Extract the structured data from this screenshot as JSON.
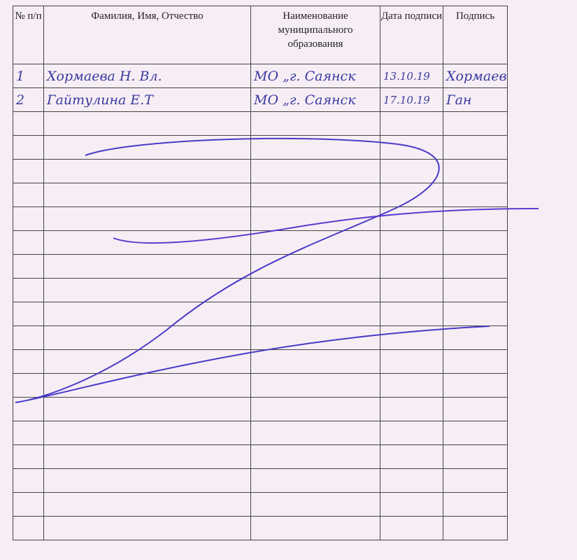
{
  "table": {
    "headers": [
      "№ п/п",
      "Фамилия, Имя, Отчество",
      "Наименование муниципального образования",
      "Дата подписи",
      "Подпись"
    ],
    "rows": [
      {
        "num": "1",
        "name": "Хормаева Н. Вл.",
        "municipality": "МО „г. Саянск",
        "date": "13.10.19",
        "signature": "Хормаев"
      },
      {
        "num": "2",
        "name": "Гайтулина Е.Т",
        "municipality": "МО „г. Саянск",
        "date": "17.10.19",
        "signature": "Ган"
      }
    ],
    "empty_rows": 18
  },
  "colors": {
    "ink": "#3a3aa0",
    "strike": "#4a3ac8",
    "paper": "#f6eef4"
  }
}
